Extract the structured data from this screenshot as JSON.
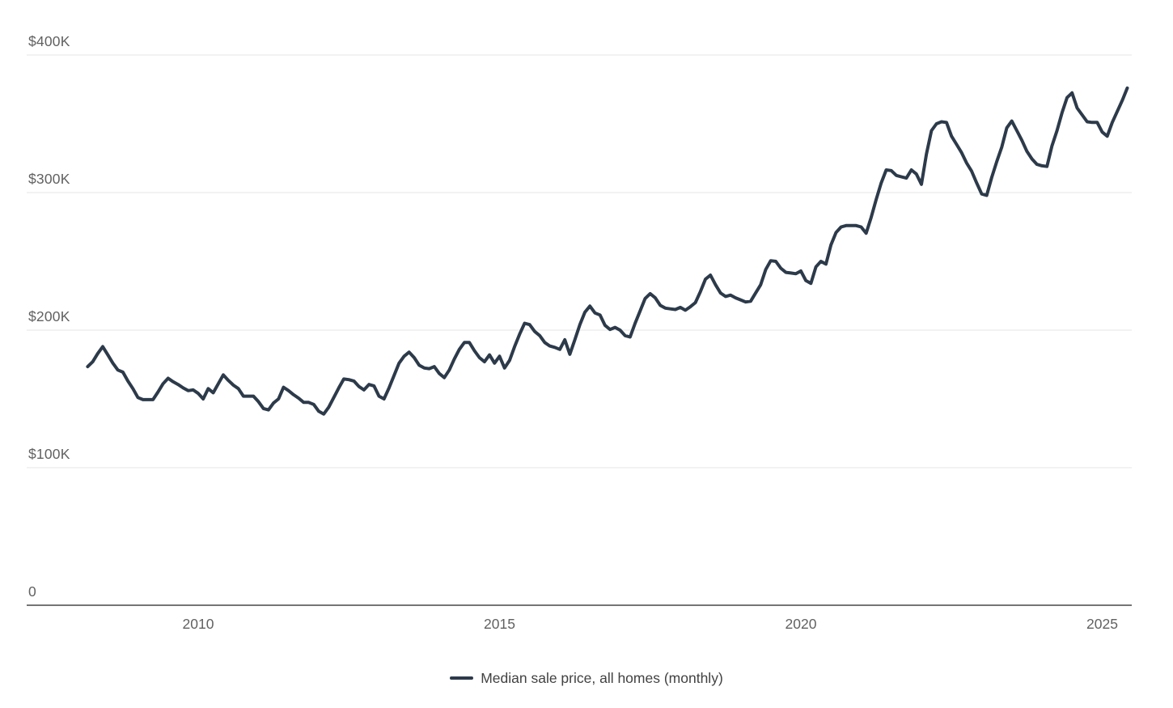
{
  "colors": {
    "line": "#2c3a4a",
    "gridline": "#e6e6e6",
    "axis_line": "#757575",
    "tick_label": "#616161",
    "legend_text": "#424242",
    "background": "#ffffff"
  },
  "legend": {
    "swatch_icon": "line-swatch"
  },
  "chart_data": {
    "type": "line",
    "title": "",
    "xlabel": "",
    "ylabel": "",
    "unit": "USD thousands",
    "frequency": "monthly",
    "x_range": [
      "2008-03",
      "2025-06"
    ],
    "ylim": [
      0,
      430
    ],
    "grid": "horizontal",
    "legend_position": "bottom-center",
    "y_ticks": [
      {
        "label": "0",
        "value": 0
      },
      {
        "label": "$100K",
        "value": 100
      },
      {
        "label": "$200K",
        "value": 200
      },
      {
        "label": "$300K",
        "value": 300
      },
      {
        "label": "$400K",
        "value": 400
      }
    ],
    "x_ticks": [
      {
        "label": "2010",
        "year": 2010
      },
      {
        "label": "2015",
        "year": 2015
      },
      {
        "label": "2020",
        "year": 2020
      },
      {
        "label": "2025",
        "year": 2025
      }
    ],
    "series": [
      {
        "name": "Median sale price, all homes (monthly)",
        "color": "#2c3a4a",
        "start": "2008-03",
        "values": [
          173.5,
          177,
          183,
          188,
          182,
          176,
          171,
          169.5,
          163,
          157.5,
          151,
          149.5,
          149.5,
          149.5,
          155,
          161,
          165,
          162.5,
          160.5,
          158,
          156,
          156.5,
          154,
          150,
          157.5,
          154.5,
          161,
          167.5,
          163.5,
          160,
          157.5,
          152,
          152,
          152,
          148,
          143,
          142,
          147,
          150,
          158.5,
          156,
          153,
          150.5,
          147.5,
          147.5,
          146,
          141,
          139,
          144,
          151,
          158,
          164.5,
          164,
          163,
          159,
          156.5,
          160.5,
          159.5,
          152,
          150,
          158,
          167,
          176,
          181,
          184,
          180,
          174.5,
          172.5,
          172,
          173.5,
          168.5,
          165.5,
          171,
          179,
          186,
          191,
          191,
          185,
          180,
          177,
          182,
          176,
          181,
          172.5,
          178,
          188,
          197,
          205,
          204,
          199,
          196,
          191,
          188.5,
          187.5,
          186,
          193,
          182.5,
          193,
          204,
          213,
          217.5,
          212.5,
          211,
          203.5,
          200.5,
          202,
          200,
          196,
          195,
          205,
          214,
          223,
          226.5,
          223.5,
          218,
          216,
          215.5,
          215,
          216.5,
          214.5,
          217,
          220,
          228,
          237,
          240,
          233,
          227,
          224.5,
          225.5,
          223.5,
          222,
          220.5,
          221,
          227,
          233,
          244,
          250.5,
          250,
          245,
          242,
          241.5,
          241,
          243,
          236,
          234,
          246,
          250,
          248,
          262,
          271,
          275,
          276,
          276,
          276,
          275,
          270.5,
          282,
          295,
          307,
          316.5,
          316,
          312.5,
          311.5,
          310.5,
          316.5,
          313.5,
          306,
          328,
          345,
          350,
          351.5,
          351,
          341,
          335,
          329,
          321.5,
          315.5,
          307,
          299,
          298,
          311,
          322.5,
          333,
          347,
          352,
          345,
          338,
          330,
          324.5,
          320.5,
          319.5,
          319,
          334,
          345,
          358,
          369,
          372.5,
          361.5,
          356.5,
          351.5,
          351,
          351,
          344,
          341,
          351,
          359,
          367,
          376
        ]
      }
    ]
  }
}
